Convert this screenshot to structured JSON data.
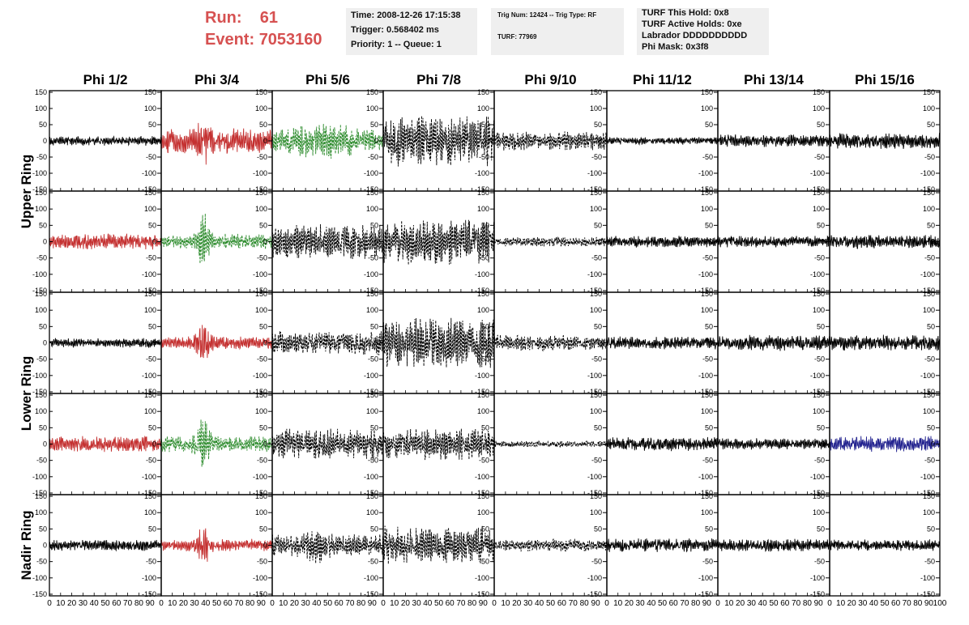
{
  "run": {
    "label": "Run:",
    "value": "61"
  },
  "event": {
    "label": "Event:",
    "value": "7053160"
  },
  "info": {
    "time": "Time: 2008-12-26 17:15:38",
    "trigger": "Trigger: 0.568402 ms",
    "priority": "Priority: 1 -- Queue: 1",
    "trig_num": "Trig Num: 12424 -- Trig Type: RF",
    "turf": "TURF: 77969",
    "turf_hold": "TURF This Hold: 0x8",
    "turf_active": "TURF Active Holds: 0xe",
    "labrador": "Labrador DDDDDDDDDD",
    "phi_mask": "Phi Mask: 0x3f8"
  },
  "colors": {
    "title": "#d65151",
    "box_bg": "#efefef",
    "red": "#c43030",
    "green": "#2a8a2a",
    "blue": "#23238f",
    "black": "#000000"
  },
  "chart_data": {
    "type": "line",
    "columns": [
      "Phi 1/2",
      "Phi 3/4",
      "Phi 5/6",
      "Phi 7/8",
      "Phi 9/10",
      "Phi 11/12",
      "Phi 13/14",
      "Phi 15/16"
    ],
    "rows": [
      "Upper Ring",
      "Lower Ring",
      "Nadir Ring"
    ],
    "row_label_spans": [
      [
        0,
        1
      ],
      [
        2,
        3
      ],
      [
        4,
        4
      ]
    ],
    "ylim": [
      -155,
      155
    ],
    "xlim": [
      0,
      100
    ],
    "y_ticks": [
      -150,
      -100,
      -50,
      0,
      50,
      100,
      150
    ],
    "x_ticks": [
      0,
      10,
      20,
      30,
      40,
      50,
      60,
      70,
      80,
      90,
      100
    ],
    "panels": [
      [
        {
          "a": 15,
          "c": "black",
          "s": "solid",
          "p": 0
        },
        {
          "a": 40,
          "c": "red",
          "s": "solid",
          "p": 85,
          "pc": 38,
          "w": 5
        },
        {
          "a": 35,
          "c": "green",
          "s": "dashed",
          "p": 70,
          "pc": 45,
          "w": 25
        },
        {
          "a": 80,
          "c": "black",
          "s": "dashed",
          "p": 0
        },
        {
          "a": 30,
          "c": "black",
          "s": "dashed",
          "p": 0
        },
        {
          "a": 12,
          "c": "black",
          "s": "solid",
          "p": 0
        },
        {
          "a": 20,
          "c": "black",
          "s": "solid",
          "p": 0
        },
        {
          "a": 25,
          "c": "black",
          "s": "solid",
          "p": 0
        }
      ],
      [
        {
          "a": 25,
          "c": "red",
          "s": "solid",
          "p": 0
        },
        {
          "a": 25,
          "c": "green",
          "s": "dashed",
          "p": 120,
          "pc": 38,
          "w": 5
        },
        {
          "a": 55,
          "c": "black",
          "s": "dashed",
          "p": 0
        },
        {
          "a": 75,
          "c": "black",
          "s": "dashed",
          "p": 0
        },
        {
          "a": 15,
          "c": "black",
          "s": "dashed",
          "p": 0
        },
        {
          "a": 18,
          "c": "black",
          "s": "solid",
          "p": 0
        },
        {
          "a": 18,
          "c": "black",
          "s": "solid",
          "p": 0
        },
        {
          "a": 22,
          "c": "black",
          "s": "solid",
          "p": 0
        }
      ],
      [
        {
          "a": 15,
          "c": "black",
          "s": "solid",
          "p": 0
        },
        {
          "a": 20,
          "c": "red",
          "s": "solid",
          "p": 80,
          "pc": 38,
          "w": 6
        },
        {
          "a": 40,
          "c": "black",
          "s": "dashed",
          "p": 0
        },
        {
          "a": 80,
          "c": "black",
          "s": "dashed",
          "p": 0
        },
        {
          "a": 25,
          "c": "black",
          "s": "dashed",
          "p": 0
        },
        {
          "a": 20,
          "c": "black",
          "s": "solid",
          "p": 0
        },
        {
          "a": 25,
          "c": "black",
          "s": "solid",
          "p": 0
        },
        {
          "a": 25,
          "c": "black",
          "s": "solid",
          "p": 0
        }
      ],
      [
        {
          "a": 25,
          "c": "red",
          "s": "solid",
          "p": 0
        },
        {
          "a": 25,
          "c": "green",
          "s": "dashed",
          "p": 100,
          "pc": 38,
          "w": 6
        },
        {
          "a": 50,
          "c": "black",
          "s": "dashed",
          "p": 0
        },
        {
          "a": 50,
          "c": "black",
          "s": "dashed",
          "p": 0
        },
        {
          "a": 10,
          "c": "black",
          "s": "dashed",
          "p": 0
        },
        {
          "a": 22,
          "c": "black",
          "s": "solid",
          "p": 0
        },
        {
          "a": 18,
          "c": "black",
          "s": "solid",
          "p": 0
        },
        {
          "a": 25,
          "c": "blue",
          "s": "solid",
          "p": 0
        }
      ],
      [
        {
          "a": 18,
          "c": "black",
          "s": "solid",
          "p": 0
        },
        {
          "a": 20,
          "c": "red",
          "s": "solid",
          "p": 80,
          "pc": 38,
          "w": 5
        },
        {
          "a": 35,
          "c": "black",
          "s": "dashed",
          "p": 60,
          "pc": 40,
          "w": 10
        },
        {
          "a": 60,
          "c": "black",
          "s": "dashed",
          "p": 0
        },
        {
          "a": 20,
          "c": "black",
          "s": "dashed",
          "p": 0
        },
        {
          "a": 22,
          "c": "black",
          "s": "solid",
          "p": 0
        },
        {
          "a": 20,
          "c": "black",
          "s": "solid",
          "p": 0
        },
        {
          "a": 18,
          "c": "black",
          "s": "solid",
          "p": 0
        }
      ]
    ]
  }
}
